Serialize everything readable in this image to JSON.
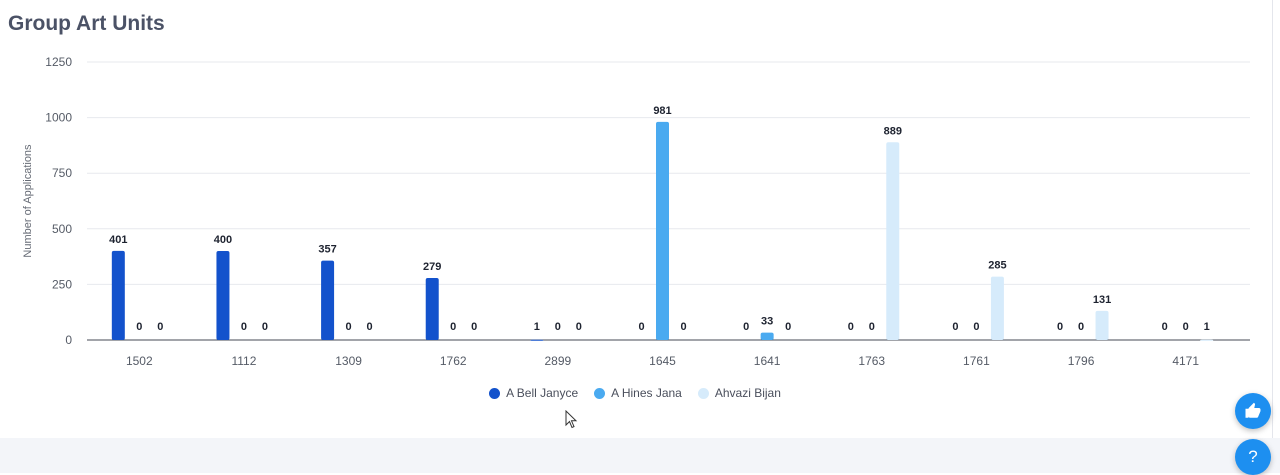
{
  "title": "Group Art Units",
  "fab": {
    "like_icon": "thumbs-up-icon",
    "help_symbol": "?"
  },
  "colors": {
    "series1": "#1352cc",
    "series2": "#4aaaf0",
    "series3": "#d6ebfb",
    "accent": "#1d8ff0"
  },
  "chart_data": {
    "type": "bar",
    "ylabel": "Number of Applications",
    "xlabel": "",
    "ylim": [
      0,
      1250
    ],
    "yticks": [
      0,
      250,
      500,
      750,
      1000,
      1250
    ],
    "grid": true,
    "legend_position": "bottom",
    "categories": [
      "1502",
      "1112",
      "1309",
      "1762",
      "2899",
      "1645",
      "1641",
      "1763",
      "1761",
      "1796",
      "4171"
    ],
    "series": [
      {
        "name": "A Bell Janyce",
        "color": "#1352cc",
        "values": [
          401,
          400,
          357,
          279,
          1,
          0,
          0,
          0,
          0,
          0,
          0
        ]
      },
      {
        "name": "A Hines Jana",
        "color": "#4aaaf0",
        "values": [
          0,
          0,
          0,
          0,
          0,
          981,
          33,
          0,
          0,
          0,
          0
        ]
      },
      {
        "name": "Ahvazi Bijan",
        "color": "#d6ebfb",
        "values": [
          0,
          0,
          0,
          0,
          0,
          0,
          0,
          889,
          285,
          131,
          1
        ]
      }
    ]
  }
}
